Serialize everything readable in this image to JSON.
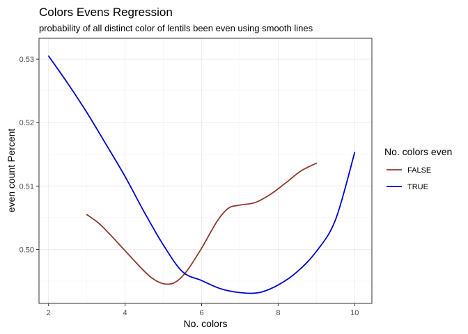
{
  "chart_data": {
    "type": "line",
    "title": "Colors Evens Regression",
    "subtitle": "probability of all distinct color of lentils been even using smooth lines",
    "xlabel": "No. colors",
    "ylabel": "even count Percent",
    "xlim": [
      1.75,
      10.45
    ],
    "ylim": [
      0.4915,
      0.5333
    ],
    "x_ticks": [
      2,
      4,
      6,
      8,
      10
    ],
    "y_ticks": [
      0.5,
      0.51,
      0.52,
      0.53
    ],
    "x_tick_labels": [
      "2",
      "4",
      "6",
      "8",
      "10"
    ],
    "y_tick_labels": [
      "0.50",
      "0.51",
      "0.52",
      "0.53"
    ],
    "grid": true,
    "legend": {
      "title": "No. colors even",
      "position": "right"
    },
    "series": [
      {
        "name": "FALSE",
        "color": "#8B3A2F",
        "x": [
          3.0,
          3.3,
          3.6,
          4.0,
          4.4,
          4.7,
          5.0,
          5.3,
          5.6,
          6.0,
          6.4,
          6.7,
          7.0,
          7.4,
          7.8,
          8.2,
          8.6,
          9.0
        ],
        "y": [
          0.5055,
          0.5042,
          0.5024,
          0.4998,
          0.4972,
          0.4955,
          0.4946,
          0.4948,
          0.4965,
          0.5002,
          0.5044,
          0.5065,
          0.507,
          0.5074,
          0.5087,
          0.5105,
          0.5124,
          0.5136
        ]
      },
      {
        "name": "TRUE",
        "color": "#0000CD",
        "x": [
          2.0,
          2.5,
          3.0,
          3.5,
          4.0,
          4.5,
          5.0,
          5.5,
          6.0,
          6.5,
          7.0,
          7.5,
          8.0,
          8.5,
          9.0,
          9.5,
          10.0
        ],
        "y": [
          0.5305,
          0.5262,
          0.5216,
          0.5166,
          0.5115,
          0.5059,
          0.5007,
          0.4965,
          0.4951,
          0.4938,
          0.4932,
          0.4932,
          0.4944,
          0.4965,
          0.4997,
          0.5047,
          0.5153
        ]
      }
    ]
  }
}
